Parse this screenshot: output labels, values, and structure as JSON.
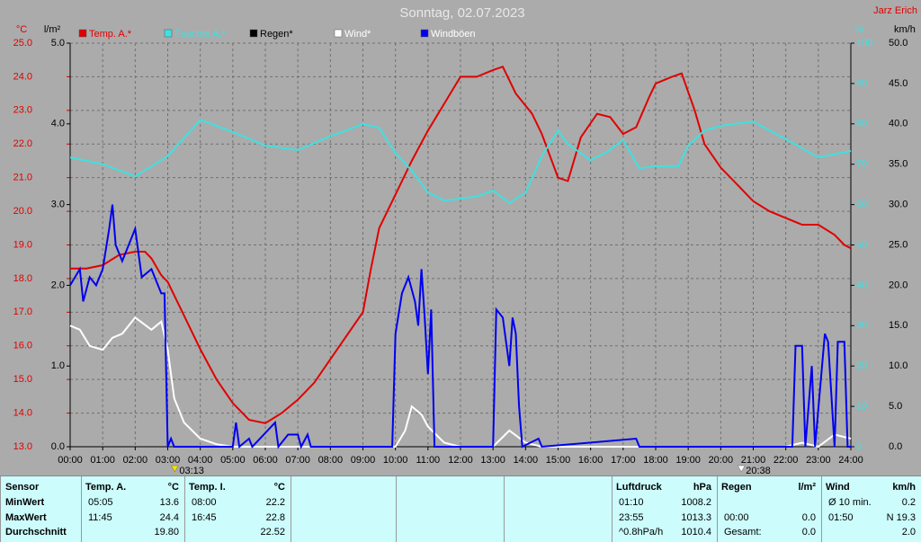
{
  "chart_data": {
    "type": "line",
    "title": "Sonntag, 02.07.2023",
    "author": "Jarz Erich",
    "xlim": [
      0,
      24
    ],
    "xticks": [
      {
        "value": 0,
        "label": "00:00"
      },
      {
        "value": 1,
        "label": "01:00"
      },
      {
        "value": 2,
        "label": "02:00"
      },
      {
        "value": 3,
        "label": "03:00"
      },
      {
        "value": 4,
        "label": "04:00"
      },
      {
        "value": 5,
        "label": "05:00"
      },
      {
        "value": 6,
        "label": "06:00"
      },
      {
        "value": 7,
        "label": "07:00"
      },
      {
        "value": 8,
        "label": "08:00"
      },
      {
        "value": 9,
        "label": "09:00"
      },
      {
        "value": 10,
        "label": "10:00"
      },
      {
        "value": 11,
        "label": "11:00"
      },
      {
        "value": 12,
        "label": "12:00"
      },
      {
        "value": 13,
        "label": "13:00"
      },
      {
        "value": 14,
        "label": "14:00"
      },
      {
        "value": 15,
        "label": "15:00"
      },
      {
        "value": 16,
        "label": "16:00"
      },
      {
        "value": 17,
        "label": "17:00"
      },
      {
        "value": 18,
        "label": "18:00"
      },
      {
        "value": 19,
        "label": "19:00"
      },
      {
        "value": 20,
        "label": "20:00"
      },
      {
        "value": 21,
        "label": "21:00"
      },
      {
        "value": 22,
        "label": "22:00"
      },
      {
        "value": 23,
        "label": "23:00"
      },
      {
        "value": 24,
        "label": "24:00"
      }
    ],
    "grid": true,
    "axes": [
      {
        "unit": "°C",
        "color": "#e00000",
        "lim": [
          13,
          25
        ],
        "ticks": [
          {
            "value": 13,
            "label": "13.0"
          },
          {
            "value": 14,
            "label": "14.0"
          },
          {
            "value": 15,
            "label": "15.0"
          },
          {
            "value": 16,
            "label": "16.0"
          },
          {
            "value": 17,
            "label": "17.0"
          },
          {
            "value": 18,
            "label": "18.0"
          },
          {
            "value": 19,
            "label": "19.0"
          },
          {
            "value": 20,
            "label": "20.0"
          },
          {
            "value": 21,
            "label": "21.0"
          },
          {
            "value": 22,
            "label": "22.0"
          },
          {
            "value": 23,
            "label": "23.0"
          },
          {
            "value": 24,
            "label": "24.0"
          },
          {
            "value": 25,
            "label": "25.0"
          }
        ]
      },
      {
        "unit": "l/m²",
        "color": "#000000",
        "lim": [
          0,
          5
        ],
        "ticks": [
          {
            "value": 0,
            "label": "0.0"
          },
          {
            "value": 1,
            "label": "1.0"
          },
          {
            "value": 2,
            "label": "2.0"
          },
          {
            "value": 3,
            "label": "3.0"
          },
          {
            "value": 4,
            "label": "4.0"
          },
          {
            "value": 5,
            "label": "5.0"
          }
        ]
      },
      {
        "unit": "%",
        "color": "#40e0e0",
        "lim": [
          0,
          100
        ],
        "ticks": [
          0,
          10,
          20,
          30,
          40,
          50,
          60,
          70,
          80,
          90,
          100
        ]
      },
      {
        "unit": "km/h",
        "color": "#000000",
        "lim": [
          0,
          50
        ],
        "ticks": [
          {
            "value": 0,
            "label": "0.0"
          },
          {
            "value": 5,
            "label": "5.0"
          },
          {
            "value": 10,
            "label": "10.0"
          },
          {
            "value": 15,
            "label": "15.0"
          },
          {
            "value": 20,
            "label": "20.0"
          },
          {
            "value": 25,
            "label": "25.0"
          },
          {
            "value": 30,
            "label": "30.0"
          },
          {
            "value": 35,
            "label": "35.0"
          },
          {
            "value": 40,
            "label": "40.0"
          },
          {
            "value": 45,
            "label": "45.0"
          },
          {
            "value": 50,
            "label": "50.0"
          }
        ]
      }
    ],
    "series": [
      {
        "name": "Temp. A.*",
        "color": "#e00000",
        "legend_color": "#e00000",
        "axis": 0,
        "x": [
          0,
          0.5,
          1,
          1.5,
          2,
          2.3,
          2.5,
          2.8,
          3,
          3.5,
          4,
          4.5,
          5,
          5.5,
          6,
          6.5,
          7,
          7.5,
          8,
          8.5,
          9,
          9.25,
          9.5,
          10,
          10.5,
          11,
          11.5,
          12,
          12.5,
          13,
          13.3,
          13.7,
          14.2,
          14.5,
          15,
          15.3,
          15.7,
          16.2,
          16.6,
          17,
          17.4,
          17.8,
          18,
          18.5,
          18.8,
          19.2,
          19.5,
          20,
          20.5,
          21,
          21.5,
          22,
          22.5,
          23,
          23.5,
          23.8,
          24
        ],
        "values": [
          18.3,
          18.3,
          18.4,
          18.7,
          18.8,
          18.8,
          18.6,
          18.1,
          17.9,
          16.9,
          15.9,
          15.0,
          14.3,
          13.8,
          13.7,
          14.0,
          14.4,
          14.9,
          15.6,
          16.3,
          17.0,
          18.3,
          19.5,
          20.5,
          21.5,
          22.4,
          23.2,
          24.0,
          24.0,
          24.2,
          24.3,
          23.5,
          22.9,
          22.3,
          21.0,
          20.9,
          22.2,
          22.9,
          22.8,
          22.3,
          22.5,
          23.4,
          23.8,
          24.0,
          24.1,
          23.0,
          22.0,
          21.3,
          20.8,
          20.3,
          20.0,
          19.8,
          19.6,
          19.6,
          19.3,
          19.0,
          18.9
        ]
      },
      {
        "name": "Feuchte A.*",
        "color": "#40e0e0",
        "legend_color": "#40e0e0",
        "axis": 2,
        "x": [
          0,
          1,
          2,
          3,
          4,
          5,
          6,
          7,
          8,
          8.5,
          9,
          9.5,
          10,
          10.5,
          11,
          11.5,
          12.5,
          13,
          13.5,
          14,
          14.5,
          15,
          15.3,
          16,
          16.5,
          17,
          17.5,
          18,
          18.7,
          19,
          19.5,
          20,
          21,
          22,
          23,
          24
        ],
        "values": [
          71.7,
          70,
          67,
          72,
          81,
          78,
          74.6,
          73.5,
          77,
          78.4,
          80,
          79,
          72.8,
          68.4,
          63,
          61,
          62,
          63.5,
          60.4,
          63,
          72,
          78.4,
          75,
          71,
          73,
          76,
          69,
          69.5,
          69.5,
          74.6,
          78.4,
          79.5,
          80.6,
          76.2,
          71.7,
          73.3
        ]
      },
      {
        "name": "Regen*",
        "color": "#000000",
        "legend_color": "#000000",
        "axis": 1,
        "x": [],
        "values": []
      },
      {
        "name": "Wind*",
        "color": "#ffffff",
        "legend_color": "#ffffff",
        "axis": 3,
        "x": [
          0,
          0.3,
          0.6,
          1,
          1.3,
          1.6,
          2,
          2.5,
          2.8,
          3,
          3.2,
          3.5,
          4,
          4.5,
          5,
          10,
          10.3,
          10.5,
          10.8,
          11,
          11.5,
          12,
          13,
          13.5,
          14,
          14.5,
          22,
          22.5,
          23,
          23.5,
          24
        ],
        "values": [
          15,
          14.5,
          12.5,
          12,
          13.5,
          14,
          16,
          14.5,
          15.5,
          12,
          6,
          3,
          1,
          0.3,
          0,
          0,
          2,
          5,
          4,
          2.5,
          0.5,
          0,
          0,
          2,
          0.5,
          0,
          0,
          0.5,
          0,
          1.5,
          1
        ]
      },
      {
        "name": "Windböen",
        "color": "#0000f0",
        "legend_color": "#ffffff",
        "axis": 3,
        "x": [
          0,
          0.3,
          0.4,
          0.6,
          0.8,
          1,
          1.2,
          1.3,
          1.4,
          1.6,
          1.8,
          2,
          2.2,
          2.5,
          2.8,
          2.9,
          3,
          3.1,
          3.2,
          5,
          5.1,
          5.2,
          5.5,
          5.6,
          6.3,
          6.4,
          6.7,
          7,
          7.1,
          7.3,
          7.4,
          9.9,
          10,
          10.2,
          10.4,
          10.6,
          10.7,
          10.8,
          10.9,
          11,
          11.1,
          11.2,
          13,
          13.1,
          13.3,
          13.5,
          13.6,
          13.7,
          13.8,
          13.9,
          14.4,
          14.5,
          17.4,
          17.5,
          22.2,
          22.3,
          22.5,
          22.6,
          22.8,
          22.9,
          23.2,
          23.3,
          23.5,
          23.6,
          23.8,
          23.9,
          24
        ],
        "values": [
          20,
          22,
          18,
          21,
          20,
          22,
          27,
          30,
          25,
          23,
          25,
          27,
          21,
          22,
          19,
          19,
          0,
          1,
          0,
          0,
          3,
          0,
          1,
          0,
          3,
          0,
          1.5,
          1.5,
          0,
          1.5,
          0,
          0,
          14,
          19,
          21,
          18,
          15,
          22,
          16,
          9,
          17,
          0,
          0,
          17,
          16,
          10,
          16,
          14,
          5,
          0,
          1,
          0,
          1,
          0,
          0,
          12.5,
          12.5,
          0,
          10,
          0,
          14,
          13,
          0,
          13,
          13,
          0,
          0
        ]
      }
    ],
    "annotations": [
      {
        "value": 3.2167,
        "label": "03:13",
        "color": "#f0e000"
      },
      {
        "value": 20.6333,
        "label": "20:38",
        "color": "#ffffff"
      }
    ]
  },
  "table": {
    "row_labels": [
      "Sensor",
      "MinWert",
      "MaxWert",
      "Durchschnitt"
    ],
    "panels": [
      {
        "header": [
          "Temp. A.",
          "°C"
        ],
        "rows": [
          [
            "05:05",
            "13.6"
          ],
          [
            "11:45",
            "24.4"
          ],
          [
            null,
            "19.80"
          ]
        ]
      },
      {
        "header": [
          "Temp. I.",
          "°C"
        ],
        "rows": [
          [
            "08:00",
            "22.2"
          ],
          [
            "16:45",
            "22.8"
          ],
          [
            null,
            "22.52"
          ]
        ]
      },
      {
        "header": [
          "Luftdruck",
          "hPa"
        ],
        "rows": [
          [
            "01:10",
            "1008.2"
          ],
          [
            "23:55",
            "1013.3"
          ],
          [
            "^0.8hPa/h",
            "1010.4"
          ]
        ]
      },
      {
        "header": [
          "Regen",
          "l/m²"
        ],
        "rows": [
          [
            null,
            null
          ],
          [
            "00:00",
            "0.0"
          ],
          [
            "Gesamt:",
            "0.0"
          ]
        ]
      },
      {
        "header": [
          "Wind",
          "km/h"
        ],
        "rows": [
          [
            "Ø 10 min.",
            "0.2"
          ],
          [
            "01:50",
            "N 19.3"
          ],
          [
            null,
            "2.0"
          ]
        ]
      }
    ]
  }
}
